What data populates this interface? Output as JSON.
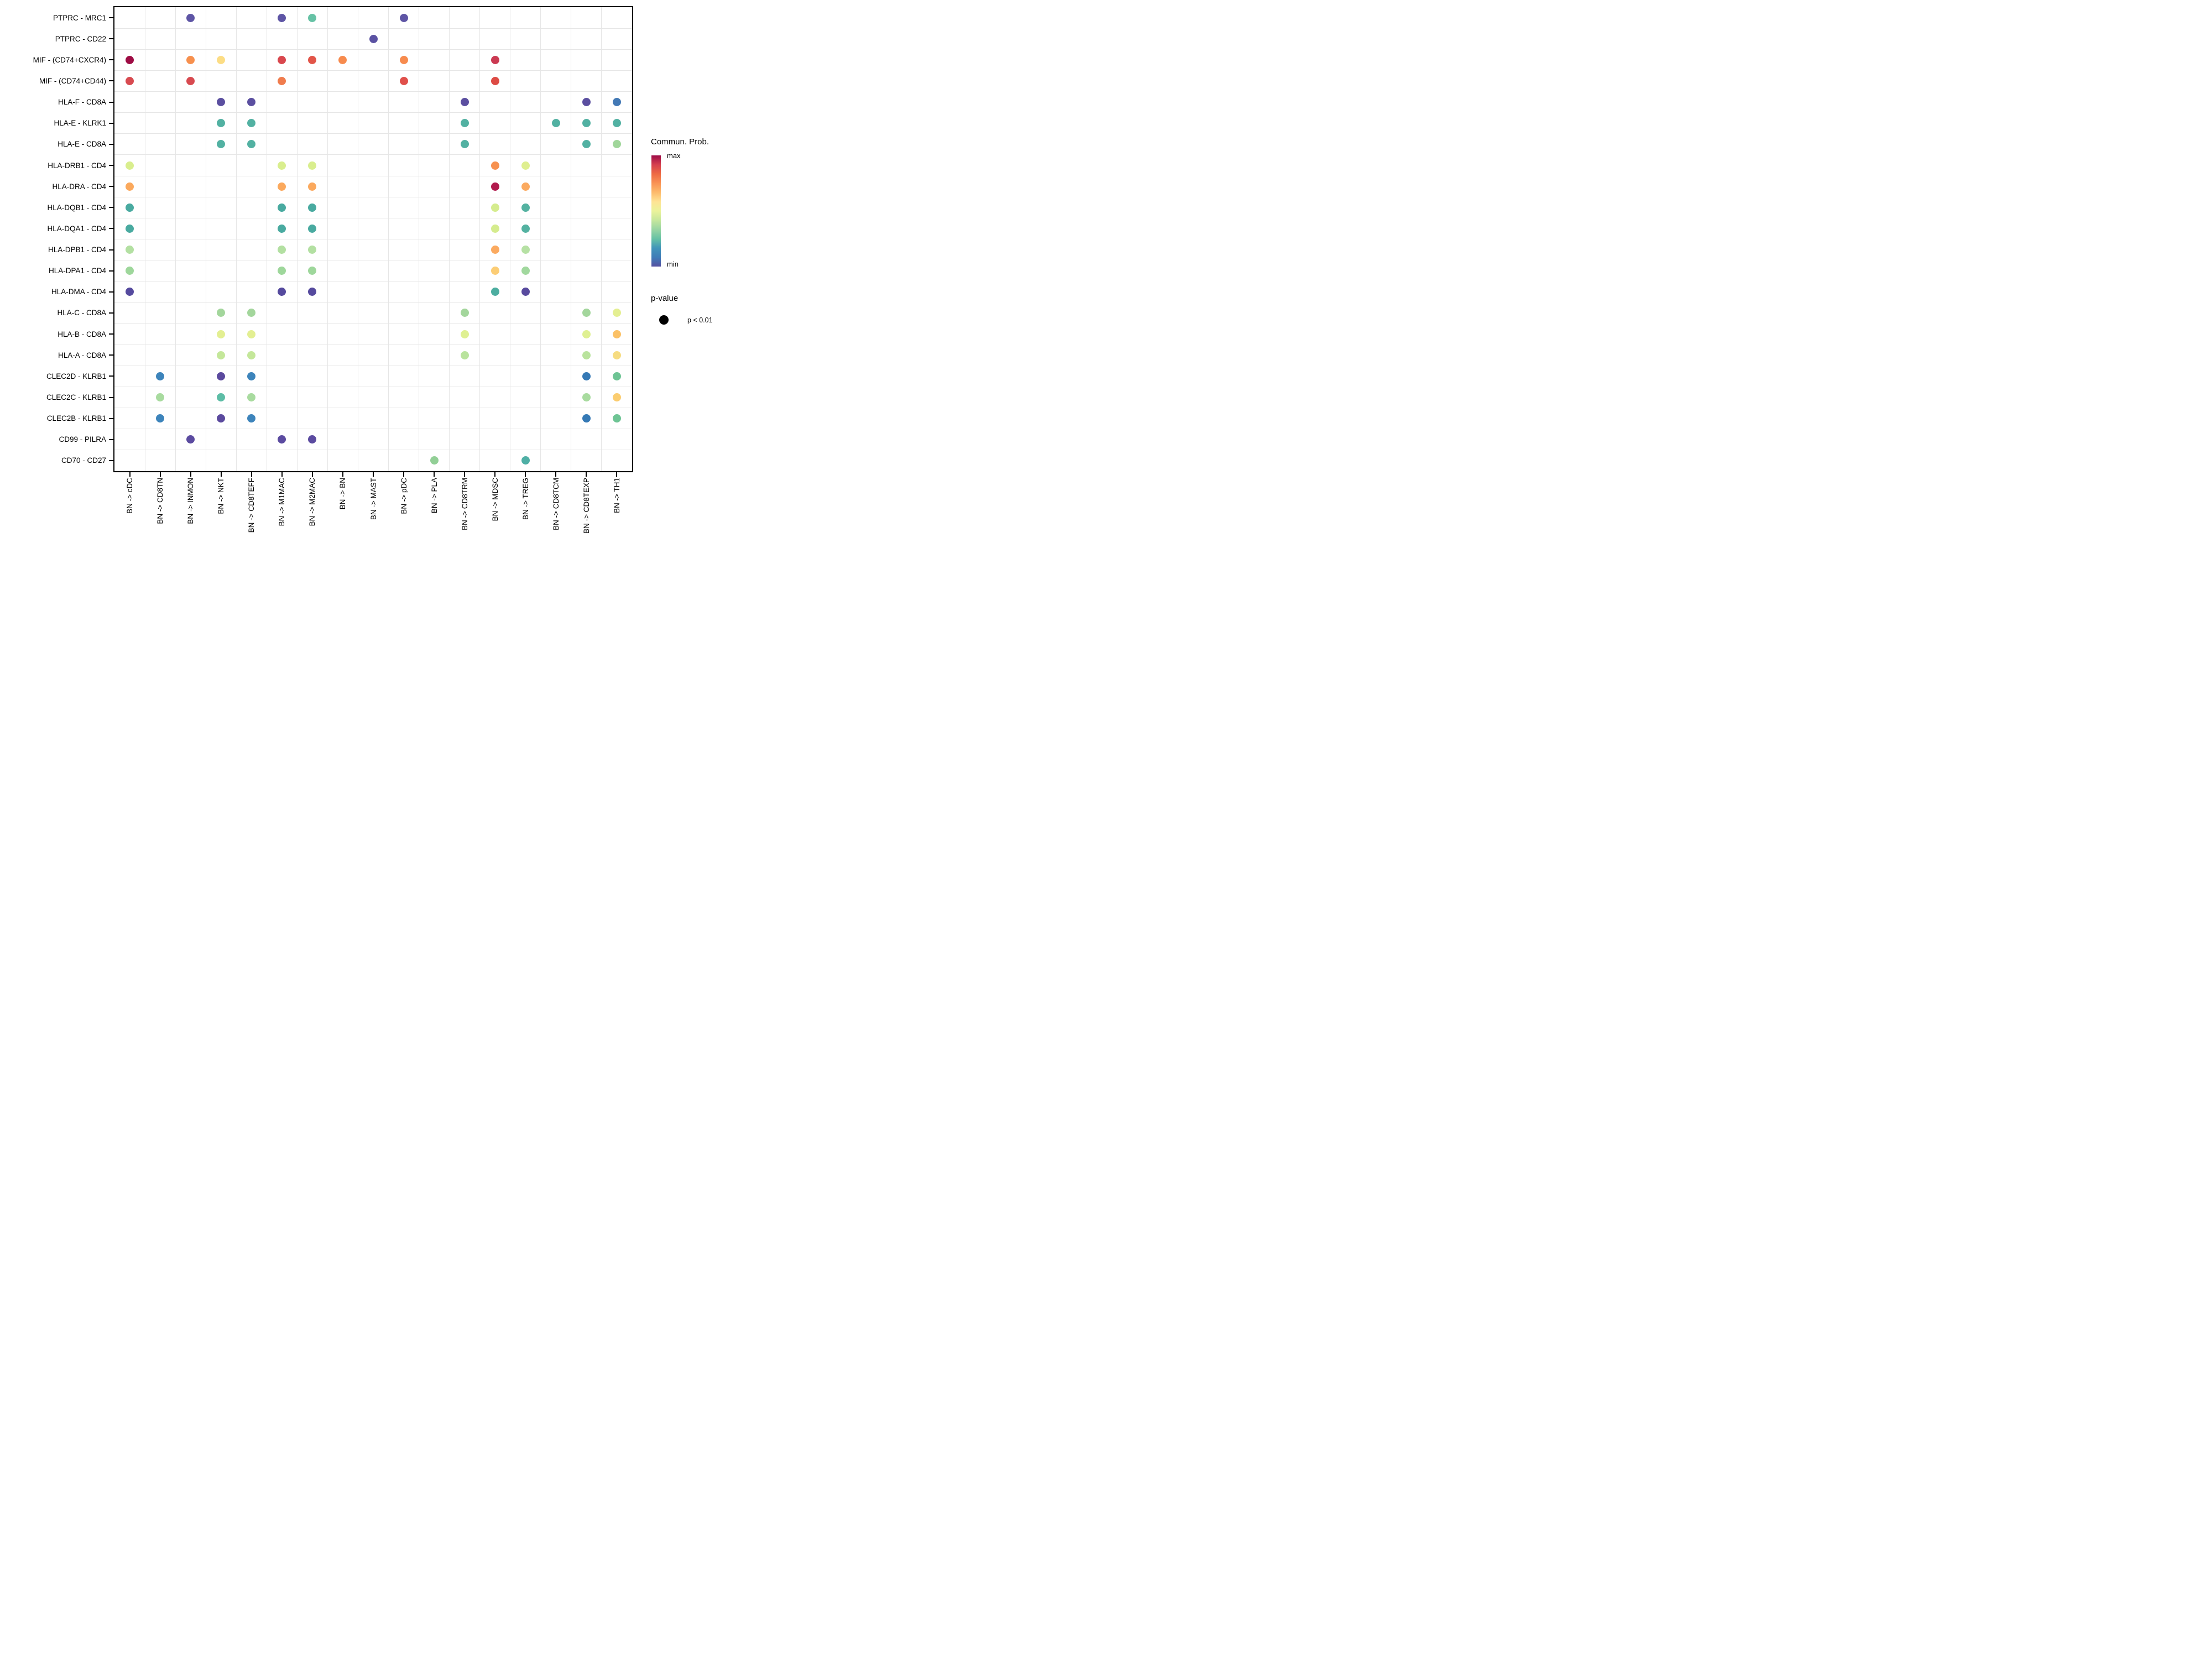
{
  "chart_data": {
    "type": "scatter",
    "title": "",
    "xlabel": "",
    "ylabel": "",
    "grid": true,
    "legend_position": "right",
    "rows": [
      "PTPRC - MRC1",
      "PTPRC - CD22",
      "MIF - (CD74+CXCR4)",
      "MIF - (CD74+CD44)",
      "HLA-F - CD8A",
      "HLA-E - KLRK1",
      "HLA-E - CD8A",
      "HLA-DRB1 - CD4",
      "HLA-DRA - CD4",
      "HLA-DQB1 - CD4",
      "HLA-DQA1 - CD4",
      "HLA-DPB1 - CD4",
      "HLA-DPA1 - CD4",
      "HLA-DMA - CD4",
      "HLA-C - CD8A",
      "HLA-B - CD8A",
      "HLA-A - CD8A",
      "CLEC2D - KLRB1",
      "CLEC2C - KLRB1",
      "CLEC2B - KLRB1",
      "CD99 - PILRA",
      "CD70 - CD27"
    ],
    "columns": [
      "BN -> cDC",
      "BN -> CD8TN",
      "BN -> INMON",
      "BN -> NKT",
      "BN -> CD8TEFF",
      "BN -> M1MAC",
      "BN -> M2MAC",
      "BN -> BN",
      "BN -> MAST",
      "BN -> pDC",
      "BN -> PLA",
      "BN -> CD8TRM",
      "BN -> MDSC",
      "BN -> TREG",
      "BN -> CD8TCM",
      "BN -> CD8TEXP",
      "BN -> TH1"
    ],
    "dots_format": "r = index into rows, c = index into columns, color = Commun. Prob. encoded hex; all dots p < 0.01",
    "dots": [
      {
        "r": 0,
        "c": 2,
        "color": "#5e55a5"
      },
      {
        "r": 0,
        "c": 5,
        "color": "#5e55a5"
      },
      {
        "r": 0,
        "c": 6,
        "color": "#66c2a5"
      },
      {
        "r": 0,
        "c": 9,
        "color": "#5e55a5"
      },
      {
        "r": 1,
        "c": 8,
        "color": "#5b52a3"
      },
      {
        "r": 2,
        "c": 0,
        "color": "#9e0c44"
      },
      {
        "r": 2,
        "c": 2,
        "color": "#f7904e"
      },
      {
        "r": 2,
        "c": 3,
        "color": "#fcdd85"
      },
      {
        "r": 2,
        "c": 5,
        "color": "#d9484e"
      },
      {
        "r": 2,
        "c": 6,
        "color": "#e25549"
      },
      {
        "r": 2,
        "c": 7,
        "color": "#f78b4e"
      },
      {
        "r": 2,
        "c": 9,
        "color": "#f78b4e"
      },
      {
        "r": 2,
        "c": 12,
        "color": "#cb3a52"
      },
      {
        "r": 3,
        "c": 0,
        "color": "#d84a50"
      },
      {
        "r": 3,
        "c": 2,
        "color": "#d84a50"
      },
      {
        "r": 3,
        "c": 5,
        "color": "#f07c4d"
      },
      {
        "r": 3,
        "c": 9,
        "color": "#e0504b"
      },
      {
        "r": 3,
        "c": 12,
        "color": "#dd4b44"
      },
      {
        "r": 4,
        "c": 3,
        "color": "#5b4fa0"
      },
      {
        "r": 4,
        "c": 4,
        "color": "#5b4fa0"
      },
      {
        "r": 4,
        "c": 11,
        "color": "#5b4fa0"
      },
      {
        "r": 4,
        "c": 15,
        "color": "#5b4fa0"
      },
      {
        "r": 4,
        "c": 16,
        "color": "#4379b5"
      },
      {
        "r": 5,
        "c": 3,
        "color": "#52b1a2"
      },
      {
        "r": 5,
        "c": 4,
        "color": "#52b1a2"
      },
      {
        "r": 5,
        "c": 11,
        "color": "#52b1a2"
      },
      {
        "r": 5,
        "c": 14,
        "color": "#52b1a2"
      },
      {
        "r": 5,
        "c": 15,
        "color": "#52b1a2"
      },
      {
        "r": 5,
        "c": 16,
        "color": "#52b1a2"
      },
      {
        "r": 6,
        "c": 3,
        "color": "#52b1a2"
      },
      {
        "r": 6,
        "c": 4,
        "color": "#52b1a2"
      },
      {
        "r": 6,
        "c": 11,
        "color": "#52b1a2"
      },
      {
        "r": 6,
        "c": 15,
        "color": "#52b1a2"
      },
      {
        "r": 6,
        "c": 16,
        "color": "#a0d69a"
      },
      {
        "r": 7,
        "c": 0,
        "color": "#d9ee8e"
      },
      {
        "r": 7,
        "c": 5,
        "color": "#d9ee8e"
      },
      {
        "r": 7,
        "c": 6,
        "color": "#d9ee8e"
      },
      {
        "r": 7,
        "c": 12,
        "color": "#f7914f"
      },
      {
        "r": 7,
        "c": 13,
        "color": "#dfef90"
      },
      {
        "r": 8,
        "c": 0,
        "color": "#fba95d"
      },
      {
        "r": 8,
        "c": 5,
        "color": "#fba95d"
      },
      {
        "r": 8,
        "c": 6,
        "color": "#fba95d"
      },
      {
        "r": 8,
        "c": 12,
        "color": "#b11a4d"
      },
      {
        "r": 8,
        "c": 13,
        "color": "#fbaa60"
      },
      {
        "r": 9,
        "c": 0,
        "color": "#49aaa0"
      },
      {
        "r": 9,
        "c": 5,
        "color": "#49aaa0"
      },
      {
        "r": 9,
        "c": 6,
        "color": "#49aaa0"
      },
      {
        "r": 9,
        "c": 12,
        "color": "#d5ec8e"
      },
      {
        "r": 9,
        "c": 13,
        "color": "#54b2a1"
      },
      {
        "r": 10,
        "c": 0,
        "color": "#49aaa0"
      },
      {
        "r": 10,
        "c": 5,
        "color": "#49aaa0"
      },
      {
        "r": 10,
        "c": 6,
        "color": "#49aaa0"
      },
      {
        "r": 10,
        "c": 12,
        "color": "#d5ec8e"
      },
      {
        "r": 10,
        "c": 13,
        "color": "#54b2a1"
      },
      {
        "r": 11,
        "c": 0,
        "color": "#b3e0a2"
      },
      {
        "r": 11,
        "c": 5,
        "color": "#b3e0a2"
      },
      {
        "r": 11,
        "c": 6,
        "color": "#b3e0a2"
      },
      {
        "r": 11,
        "c": 12,
        "color": "#fbaa60"
      },
      {
        "r": 11,
        "c": 13,
        "color": "#b6e1a4"
      },
      {
        "r": 12,
        "c": 0,
        "color": "#9ed79b"
      },
      {
        "r": 12,
        "c": 5,
        "color": "#9ed79b"
      },
      {
        "r": 12,
        "c": 6,
        "color": "#9ed79b"
      },
      {
        "r": 12,
        "c": 12,
        "color": "#fccd75"
      },
      {
        "r": 12,
        "c": 13,
        "color": "#a1d89e"
      },
      {
        "r": 13,
        "c": 0,
        "color": "#554a9e"
      },
      {
        "r": 13,
        "c": 5,
        "color": "#554a9e"
      },
      {
        "r": 13,
        "c": 6,
        "color": "#554a9e"
      },
      {
        "r": 13,
        "c": 12,
        "color": "#4cada0"
      },
      {
        "r": 13,
        "c": 13,
        "color": "#584a9e"
      },
      {
        "r": 14,
        "c": 3,
        "color": "#a3d69c"
      },
      {
        "r": 14,
        "c": 4,
        "color": "#a3d69c"
      },
      {
        "r": 14,
        "c": 11,
        "color": "#a3d69c"
      },
      {
        "r": 14,
        "c": 15,
        "color": "#a3d69c"
      },
      {
        "r": 14,
        "c": 16,
        "color": "#e4ef92"
      },
      {
        "r": 15,
        "c": 3,
        "color": "#e3ef92"
      },
      {
        "r": 15,
        "c": 4,
        "color": "#e3ef92"
      },
      {
        "r": 15,
        "c": 11,
        "color": "#dff092"
      },
      {
        "r": 15,
        "c": 15,
        "color": "#dff092"
      },
      {
        "r": 15,
        "c": 16,
        "color": "#fbc166"
      },
      {
        "r": 16,
        "c": 3,
        "color": "#c4e79a"
      },
      {
        "r": 16,
        "c": 4,
        "color": "#c4e79a"
      },
      {
        "r": 16,
        "c": 11,
        "color": "#b9e39d"
      },
      {
        "r": 16,
        "c": 15,
        "color": "#b9e39d"
      },
      {
        "r": 16,
        "c": 16,
        "color": "#f6dc81"
      },
      {
        "r": 17,
        "c": 1,
        "color": "#3d84bb"
      },
      {
        "r": 17,
        "c": 3,
        "color": "#5b4a9e"
      },
      {
        "r": 17,
        "c": 4,
        "color": "#3d84bb"
      },
      {
        "r": 17,
        "c": 15,
        "color": "#3579b5"
      },
      {
        "r": 17,
        "c": 16,
        "color": "#6ec494"
      },
      {
        "r": 18,
        "c": 1,
        "color": "#a8db9f"
      },
      {
        "r": 18,
        "c": 3,
        "color": "#5dbda6"
      },
      {
        "r": 18,
        "c": 4,
        "color": "#a8db9f"
      },
      {
        "r": 18,
        "c": 15,
        "color": "#a8db9f"
      },
      {
        "r": 18,
        "c": 16,
        "color": "#fbcd70"
      },
      {
        "r": 19,
        "c": 1,
        "color": "#3d84bb"
      },
      {
        "r": 19,
        "c": 3,
        "color": "#5b4a9e"
      },
      {
        "r": 19,
        "c": 4,
        "color": "#3d84bb"
      },
      {
        "r": 19,
        "c": 15,
        "color": "#3579b5"
      },
      {
        "r": 19,
        "c": 16,
        "color": "#6ec494"
      },
      {
        "r": 20,
        "c": 2,
        "color": "#5b4ba0"
      },
      {
        "r": 20,
        "c": 5,
        "color": "#5b4ba0"
      },
      {
        "r": 20,
        "c": 6,
        "color": "#5b4ba0"
      },
      {
        "r": 21,
        "c": 10,
        "color": "#92cf96"
      },
      {
        "r": 21,
        "c": 13,
        "color": "#4fafa5"
      }
    ],
    "legend": {
      "color_title": "Commun. Prob.",
      "color_max_label": "max",
      "color_min_label": "min",
      "gradient_top_to_bottom": [
        "#9e0c48",
        "#d5404f",
        "#ee6a43",
        "#f99355",
        "#fdbb6c",
        "#fee395",
        "#ebf39b",
        "#c6e79d",
        "#98d5a3",
        "#66c2a5",
        "#4295ba",
        "#3f7cb8",
        "#5651a2"
      ],
      "size_title": "p-value",
      "size_label": "p < 0.01",
      "size_dot_color": "#000000"
    }
  }
}
